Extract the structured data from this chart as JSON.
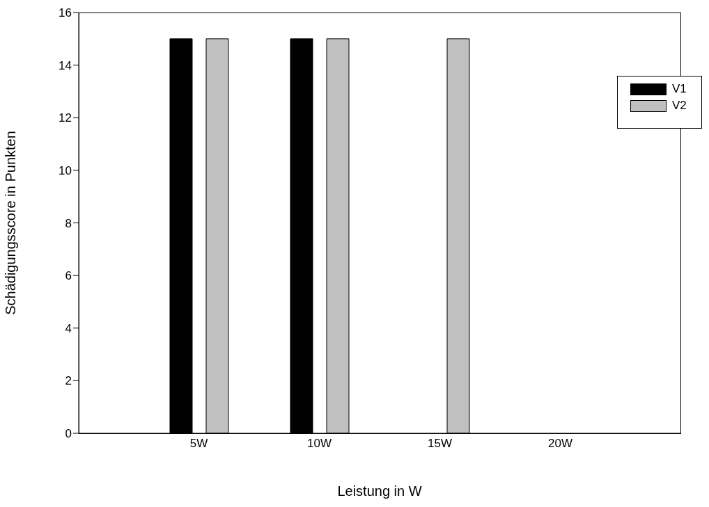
{
  "chart_data": {
    "type": "bar",
    "xlabel": "Leistung in W",
    "ylabel": "Schädigungsscore in Punkten",
    "categories": [
      "5W",
      "10W",
      "15W",
      "20W"
    ],
    "series": [
      {
        "name": "V1",
        "color": "#000000",
        "values": [
          15,
          15,
          0,
          0
        ]
      },
      {
        "name": "V2",
        "color": "#c0c0c0",
        "values": [
          15,
          15,
          15,
          0
        ]
      }
    ],
    "ylim": [
      0,
      16
    ],
    "yticks": [
      0,
      2,
      4,
      6,
      8,
      10,
      12,
      14,
      16
    ],
    "grid": false,
    "legend": "top right"
  }
}
